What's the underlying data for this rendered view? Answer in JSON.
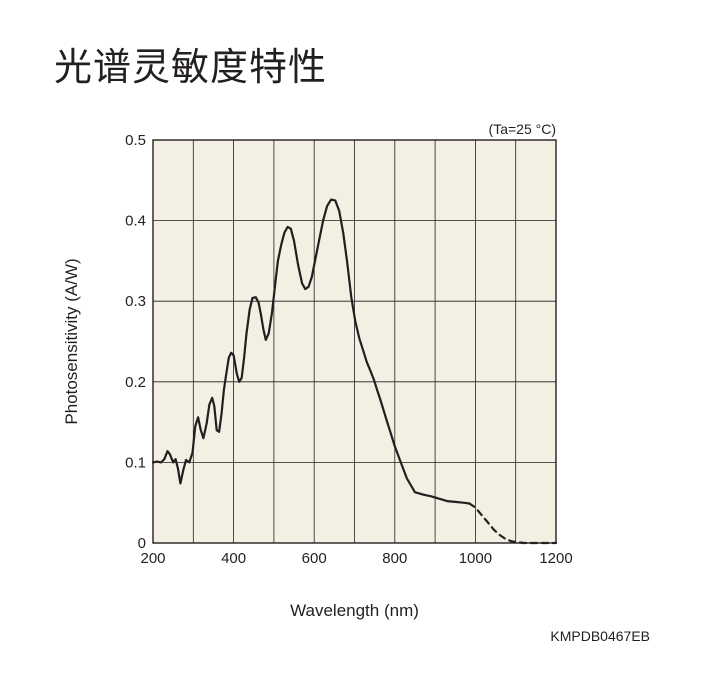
{
  "page": {
    "title": "光谱灵敏度特性",
    "figure_code": "KMPDB0467EB"
  },
  "chart_data": {
    "type": "line",
    "title": "",
    "annotation": "(Ta=25 °C)",
    "xlabel": "Wavelength (nm)",
    "ylabel": "Photosensitivity (A/W)",
    "xlim": [
      200,
      1200
    ],
    "ylim": [
      0,
      0.5
    ],
    "x_ticks": [
      200,
      400,
      600,
      800,
      1000,
      1200
    ],
    "x_tick_labels": [
      "200",
      "400",
      "600",
      "800",
      "1000",
      "1200"
    ],
    "y_ticks": [
      0,
      0.1,
      0.2,
      0.3,
      0.4,
      0.5
    ],
    "y_tick_labels": [
      "0",
      "0.1",
      "0.2",
      "0.3",
      "0.4",
      "0.5"
    ],
    "grid": true,
    "grid_x_step": 100,
    "background_color": "#f3efe3",
    "line_color": "#231f20",
    "series": [
      {
        "style": "solid",
        "x": [
          200,
          210,
          220,
          228,
          236,
          242,
          250,
          256,
          262,
          268,
          275,
          282,
          290,
          298,
          305,
          312,
          318,
          325,
          333,
          340,
          347,
          352,
          358,
          364,
          370,
          376,
          382,
          388,
          394,
          400,
          408,
          414,
          420,
          426,
          432,
          440,
          447,
          455,
          462,
          468,
          474,
          480,
          487,
          495,
          503,
          510,
          518,
          526,
          534,
          542,
          550,
          560,
          570,
          578,
          586,
          594,
          602,
          612,
          622,
          632,
          642,
          652,
          662,
          672,
          682,
          692,
          702,
          712,
          722,
          730,
          740,
          748,
          756,
          764,
          772,
          780,
          790,
          800,
          815,
          830,
          850,
          870,
          890,
          910,
          930,
          950,
          970,
          985
        ],
        "y": [
          0.1,
          0.101,
          0.1,
          0.104,
          0.114,
          0.11,
          0.1,
          0.104,
          0.092,
          0.074,
          0.09,
          0.103,
          0.1,
          0.112,
          0.145,
          0.156,
          0.141,
          0.13,
          0.148,
          0.172,
          0.18,
          0.17,
          0.14,
          0.138,
          0.16,
          0.19,
          0.21,
          0.23,
          0.236,
          0.233,
          0.21,
          0.2,
          0.205,
          0.23,
          0.26,
          0.29,
          0.304,
          0.305,
          0.298,
          0.283,
          0.265,
          0.252,
          0.26,
          0.285,
          0.32,
          0.35,
          0.37,
          0.385,
          0.392,
          0.39,
          0.375,
          0.345,
          0.322,
          0.315,
          0.318,
          0.33,
          0.35,
          0.375,
          0.4,
          0.418,
          0.426,
          0.425,
          0.412,
          0.385,
          0.348,
          0.305,
          0.275,
          0.254,
          0.238,
          0.225,
          0.213,
          0.203,
          0.19,
          0.178,
          0.165,
          0.152,
          0.136,
          0.12,
          0.1,
          0.08,
          0.063,
          0.06,
          0.058,
          0.055,
          0.052,
          0.051,
          0.05,
          0.049
        ]
      },
      {
        "style": "dashed",
        "x": [
          985,
          1000,
          1015,
          1030,
          1045,
          1060,
          1075,
          1090,
          1105,
          1120,
          1140,
          1160,
          1180,
          1200
        ],
        "y": [
          0.049,
          0.044,
          0.035,
          0.026,
          0.017,
          0.01,
          0.005,
          0.002,
          0.001,
          0.0,
          0.0,
          0.0,
          0.0,
          0.0
        ]
      }
    ]
  }
}
